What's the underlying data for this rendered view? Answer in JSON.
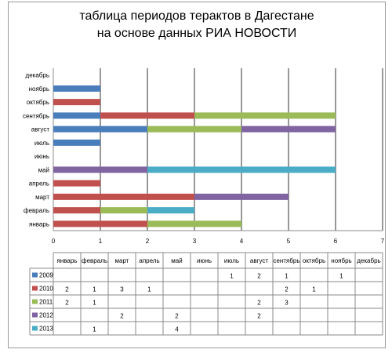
{
  "chart_data": {
    "type": "bar",
    "orientation": "horizontal",
    "stacked": true,
    "title_lines": [
      "таблица  периодов терактов в Дагестане",
      "на основе данных РИА НОВОСТИ"
    ],
    "categories": [
      "январь",
      "февраль",
      "март",
      "апрель",
      "май",
      "июнь",
      "июль",
      "август",
      "сентябрь",
      "октябрь",
      "ноябрь",
      "декабрь"
    ],
    "xlim": [
      0,
      7
    ],
    "xticks": [
      0,
      1,
      2,
      3,
      4,
      5,
      6,
      7
    ],
    "grid": "vertical",
    "legend": "data-table-left",
    "series": [
      {
        "name": "2009",
        "color": "#4a7ebb",
        "values": [
          null,
          null,
          null,
          null,
          null,
          null,
          1,
          2,
          1,
          null,
          1,
          null
        ]
      },
      {
        "name": "2010",
        "color": "#c0504d",
        "values": [
          2,
          1,
          3,
          1,
          null,
          null,
          null,
          null,
          2,
          1,
          null,
          null
        ]
      },
      {
        "name": "2011",
        "color": "#9bbb59",
        "values": [
          2,
          1,
          null,
          null,
          null,
          null,
          null,
          2,
          3,
          null,
          null,
          null
        ]
      },
      {
        "name": "2012",
        "color": "#8064a2",
        "values": [
          null,
          null,
          2,
          null,
          2,
          null,
          null,
          2,
          null,
          null,
          null,
          null
        ]
      },
      {
        "name": "2013",
        "color": "#4bacc6",
        "values": [
          null,
          1,
          null,
          null,
          4,
          null,
          null,
          null,
          null,
          null,
          null,
          null
        ]
      }
    ]
  }
}
